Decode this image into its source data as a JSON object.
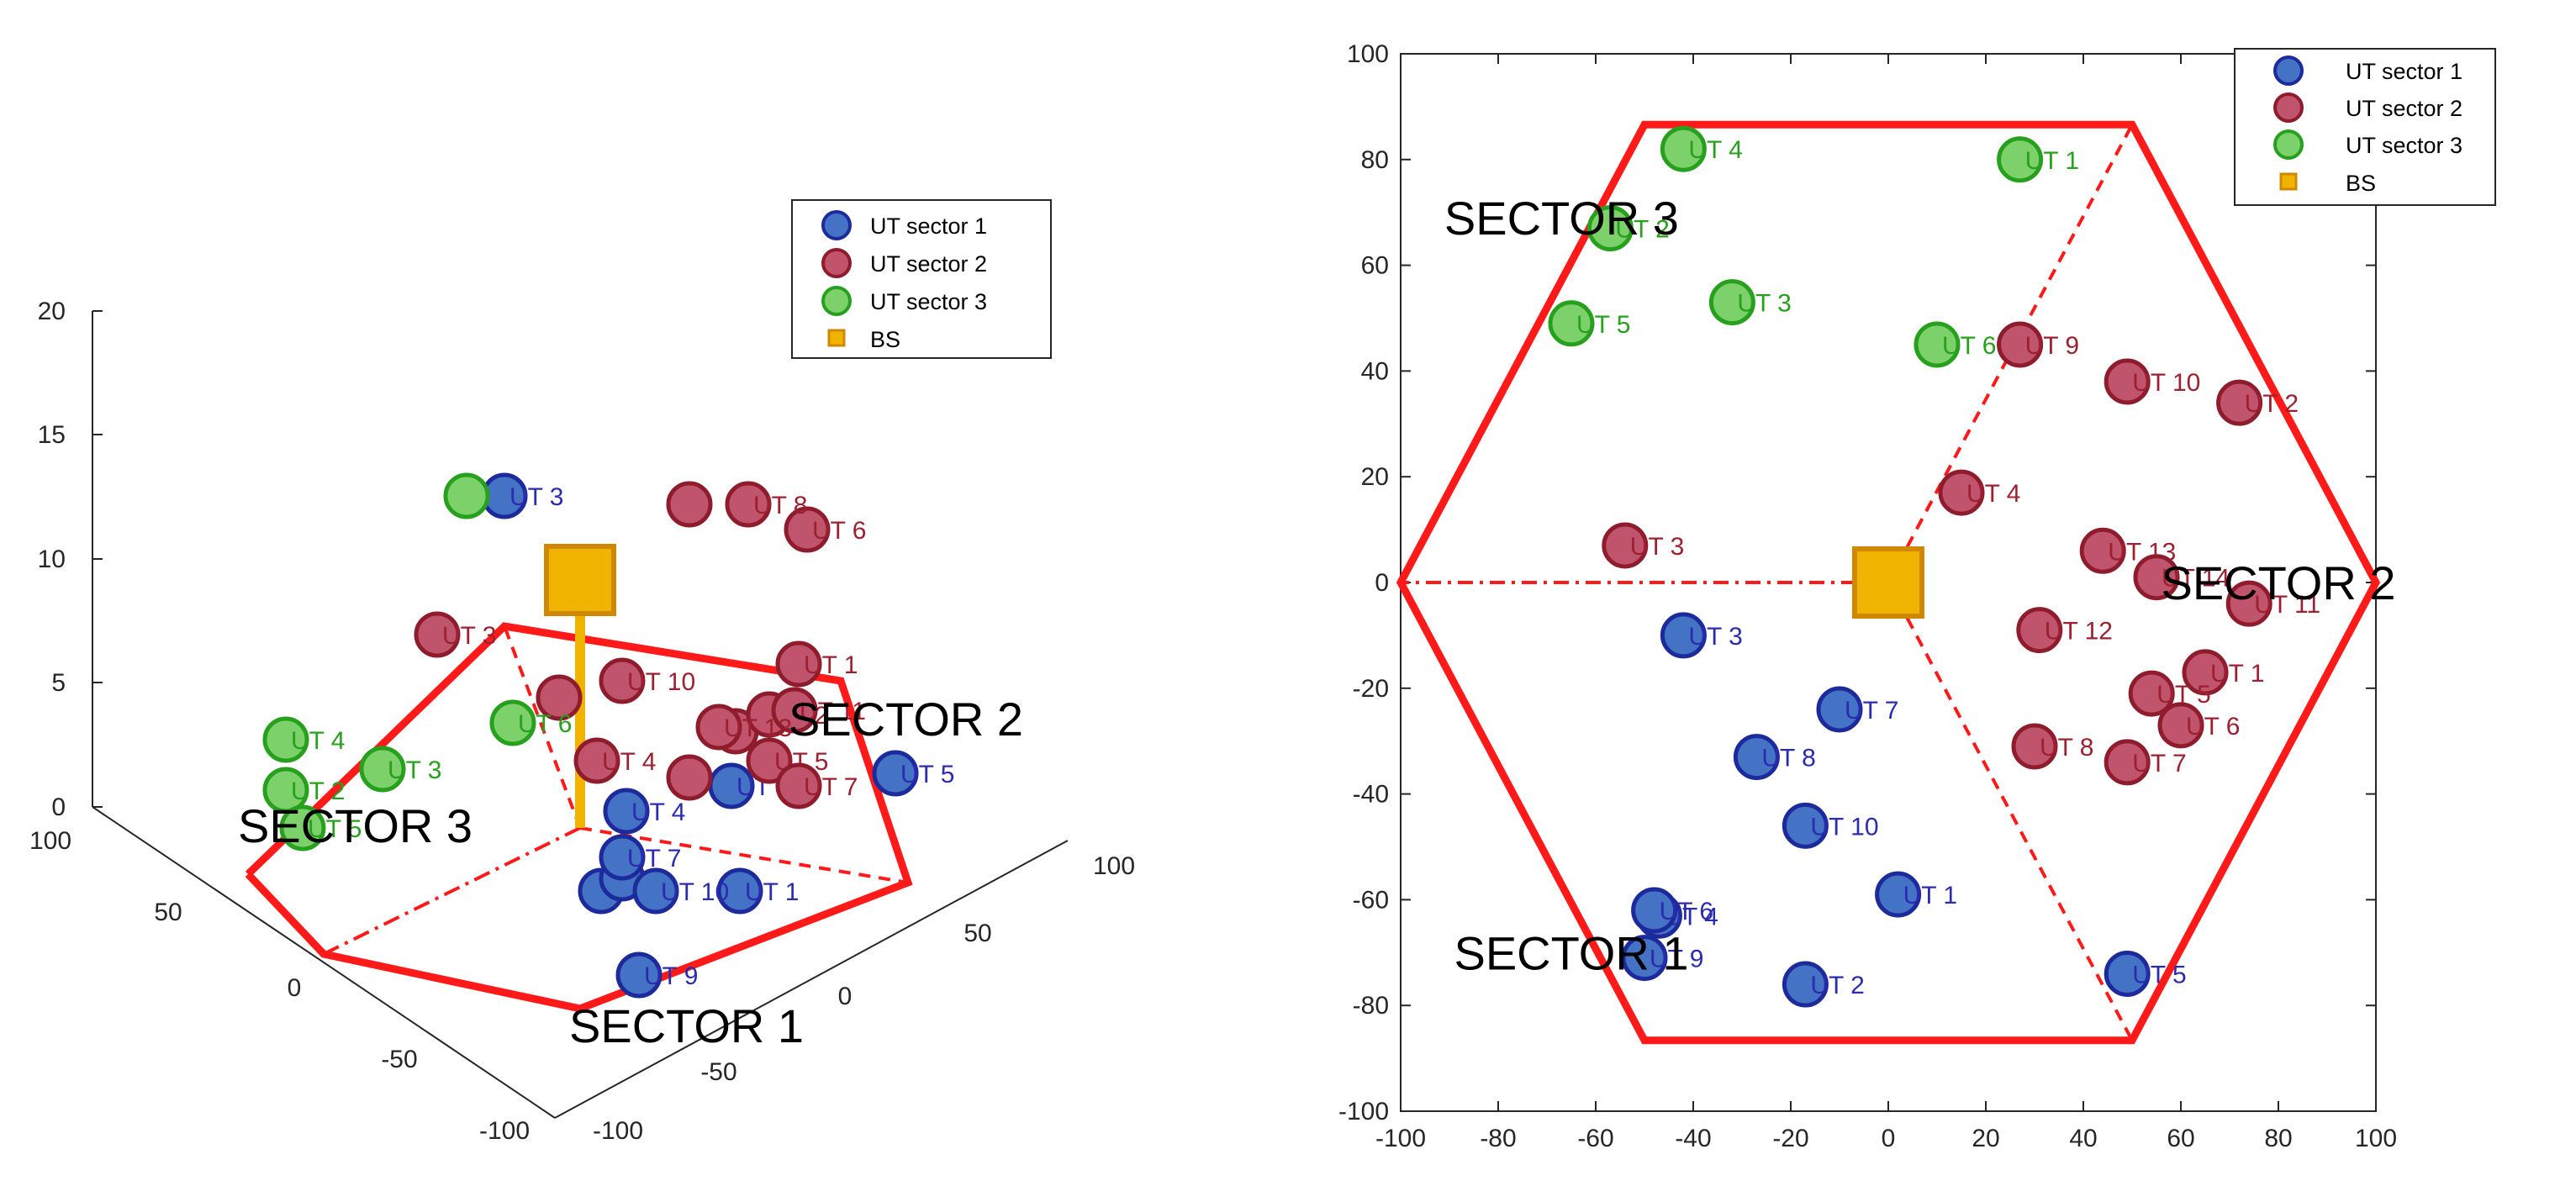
{
  "colors": {
    "sector1_fill": "#4472c4",
    "sector1_edge": "#1c2a9c",
    "sector1_text": "#2b2bb0",
    "sector2_fill": "#c0546c",
    "sector2_edge": "#8e1c2c",
    "sector2_text": "#9c2030",
    "sector3_fill": "#7cd16a",
    "sector3_edge": "#27a01e",
    "sector3_text": "#27a01e",
    "bs_fill": "#f0b400",
    "bs_edge": "#d08800",
    "hex": "#ff1a1a"
  },
  "legend": [
    "UT sector 1",
    "UT sector 2",
    "UT sector 3",
    "BS"
  ],
  "chart_data": [
    {
      "type": "scatter",
      "title": "",
      "view": "3d-perspective",
      "zlim": [
        0,
        20
      ],
      "zticks": [
        "0",
        "5",
        "10",
        "15",
        "20"
      ],
      "xticks_front": [
        "-100",
        "-50",
        "0",
        "50",
        "100"
      ],
      "xticks_back": [
        "-100",
        "-50",
        "0",
        "50",
        "100"
      ],
      "sector_labels": [
        "SECTOR 1",
        "SECTOR 2",
        "SECTOR 3"
      ],
      "legend_location": "top-right",
      "series": [
        {
          "name": "UT sector 1",
          "labels": [
            "UT 1",
            "UT 2",
            "UT 3",
            "UT 4",
            "UT 5",
            "UT 7",
            "UT 9",
            "UT 10"
          ]
        },
        {
          "name": "UT sector 2",
          "labels": [
            "UT 1",
            "UT 2",
            "UT 3",
            "UT 4",
            "UT 5",
            "UT 6",
            "UT 7",
            "UT 8",
            "UT 10",
            "UT 11",
            "UT 13"
          ]
        },
        {
          "name": "UT sector 3",
          "labels": [
            "UT 2",
            "UT 3",
            "UT 4",
            "UT 5",
            "UT 6"
          ]
        },
        {
          "name": "BS",
          "labels": []
        }
      ]
    },
    {
      "type": "scatter",
      "title": "",
      "xlabel": "",
      "ylabel": "",
      "xlim": [
        -100,
        100
      ],
      "ylim": [
        -100,
        100
      ],
      "xticks": [
        -100,
        -80,
        -60,
        -40,
        -20,
        0,
        20,
        40,
        60,
        80,
        100
      ],
      "yticks": [
        -100,
        -80,
        -60,
        -40,
        -20,
        0,
        20,
        40,
        60,
        80,
        100
      ],
      "grid": false,
      "legend_location": "top-right",
      "sectors": [
        {
          "label": "SECTOR 1",
          "x": -65,
          "y": -70
        },
        {
          "label": "SECTOR 2",
          "x": 80,
          "y": 0
        },
        {
          "label": "SECTOR 3",
          "x": -67,
          "y": 69
        }
      ],
      "hexagon": {
        "center": [
          0,
          0
        ],
        "radius": 100
      },
      "series": [
        {
          "name": "UT sector 1",
          "points": [
            {
              "label": "UT 1",
              "x": 2,
              "y": -59
            },
            {
              "label": "UT 2",
              "x": -17,
              "y": -76
            },
            {
              "label": "UT 3",
              "x": -42,
              "y": -10
            },
            {
              "label": "UT 4",
              "x": -47,
              "y": -63
            },
            {
              "label": "UT 5",
              "x": 49,
              "y": -74
            },
            {
              "label": "UT 6",
              "x": -48,
              "y": -62
            },
            {
              "label": "UT 7",
              "x": -10,
              "y": -24
            },
            {
              "label": "UT 8",
              "x": -27,
              "y": -33
            },
            {
              "label": "UT 9",
              "x": -50,
              "y": -71
            },
            {
              "label": "UT 10",
              "x": -17,
              "y": -46
            }
          ]
        },
        {
          "name": "UT sector 2",
          "points": [
            {
              "label": "UT 1",
              "x": 65,
              "y": -17
            },
            {
              "label": "UT 2",
              "x": 72,
              "y": 34
            },
            {
              "label": "UT 3",
              "x": -54,
              "y": 7
            },
            {
              "label": "UT 4",
              "x": 15,
              "y": 17
            },
            {
              "label": "UT 5",
              "x": 54,
              "y": -21
            },
            {
              "label": "UT 6",
              "x": 60,
              "y": -27
            },
            {
              "label": "UT 7",
              "x": 49,
              "y": -34
            },
            {
              "label": "UT 8",
              "x": 30,
              "y": -31
            },
            {
              "label": "UT 9",
              "x": 27,
              "y": 45
            },
            {
              "label": "UT 10",
              "x": 49,
              "y": 38
            },
            {
              "label": "UT 11",
              "x": 74,
              "y": -4
            },
            {
              "label": "UT 12",
              "x": 31,
              "y": -9
            },
            {
              "label": "UT 13",
              "x": 44,
              "y": 6
            },
            {
              "label": "UT 14",
              "x": 55,
              "y": 1
            }
          ]
        },
        {
          "name": "UT sector 3",
          "points": [
            {
              "label": "UT 1",
              "x": 27,
              "y": 80
            },
            {
              "label": "UT 2",
              "x": -57,
              "y": 67
            },
            {
              "label": "UT 3",
              "x": -32,
              "y": 53
            },
            {
              "label": "UT 4",
              "x": -42,
              "y": 82
            },
            {
              "label": "UT 5",
              "x": -65,
              "y": 49
            },
            {
              "label": "UT 6",
              "x": 10,
              "y": 45
            }
          ]
        },
        {
          "name": "BS",
          "points": [
            {
              "label": "",
              "x": 0,
              "y": 0
            }
          ]
        }
      ]
    }
  ]
}
